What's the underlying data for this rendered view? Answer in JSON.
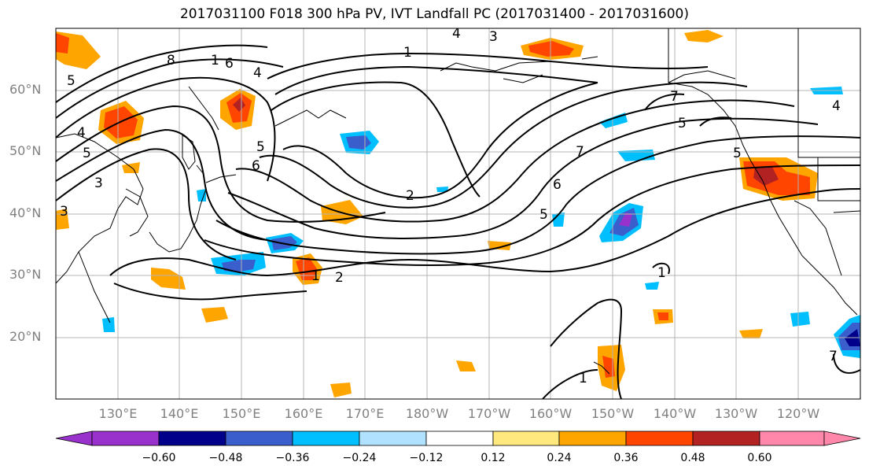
{
  "title": "2017031100 F018 300 hPa PV, IVT Landfall PC (2017031400 - 2017031600)",
  "latitude_labels": [
    "60°N",
    "50°N",
    "40°N",
    "30°N",
    "20°N"
  ],
  "longitude_labels": [
    "130°E",
    "140°E",
    "150°E",
    "160°E",
    "170°E",
    "180°W",
    "170°W",
    "160°W",
    "150°W",
    "140°W",
    "130°W",
    "120°W"
  ],
  "contour_labels": [
    "1",
    "2",
    "3",
    "4",
    "5",
    "6",
    "7",
    "8"
  ],
  "colorbar": {
    "ticks": [
      "−0.60",
      "−0.48",
      "−0.36",
      "−0.24",
      "−0.12",
      "0.12",
      "0.24",
      "0.36",
      "0.48",
      "0.60"
    ],
    "colors": [
      "#9932cc",
      "#00008b",
      "#3a5fcd",
      "#00bfff",
      "#b0e2ff",
      "#ffffff",
      "#ffe97f",
      "#ffa500",
      "#ff4500",
      "#b22222",
      "#ff88aa"
    ]
  }
}
